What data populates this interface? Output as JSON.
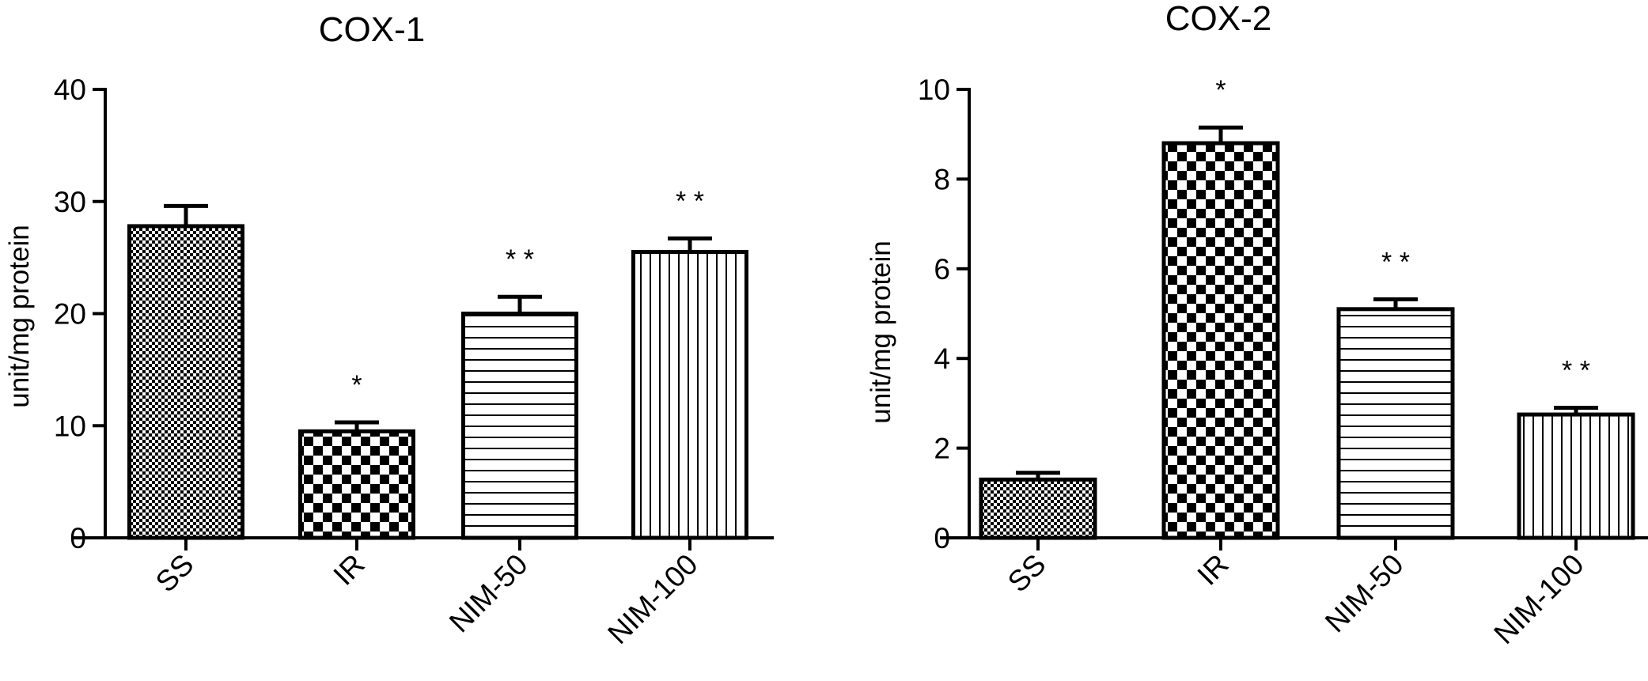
{
  "chart_data": [
    {
      "type": "bar",
      "title": "COX-1",
      "xlabel": "",
      "ylabel": "unit/mg protein",
      "ylim": [
        0,
        40
      ],
      "yticks": [
        0,
        10,
        20,
        30,
        40
      ],
      "yticklabels": [
        "0",
        "10",
        "20",
        "30",
        "40"
      ],
      "categories": [
        "SS",
        "IR",
        "NIM-50",
        "NIM-100"
      ],
      "values": [
        27.8,
        9.5,
        20.0,
        25.5
      ],
      "error": [
        1.8,
        0.8,
        1.5,
        1.2
      ],
      "annotations": [
        "",
        "*",
        "* *",
        "* *"
      ],
      "patterns": [
        "fine-checker",
        "coarse-checker",
        "horizontal-lines",
        "vertical-lines"
      ],
      "grid": false,
      "legend": "none"
    },
    {
      "type": "bar",
      "title": "COX-2",
      "xlabel": "",
      "ylabel": "unit/mg protein",
      "ylim": [
        0,
        10
      ],
      "yticks": [
        0,
        2,
        4,
        6,
        8,
        10
      ],
      "yticklabels": [
        "0",
        "2",
        "4",
        "6",
        "8",
        "10"
      ],
      "categories": [
        "SS",
        "IR",
        "NIM-50",
        "NIM-100"
      ],
      "values": [
        1.3,
        8.8,
        5.1,
        2.75
      ],
      "error": [
        0.15,
        0.35,
        0.22,
        0.15
      ],
      "annotations": [
        "",
        "*",
        "* *",
        "* *"
      ],
      "patterns": [
        "fine-checker",
        "coarse-checker",
        "horizontal-lines",
        "vertical-lines"
      ],
      "grid": false,
      "legend": "none"
    }
  ]
}
